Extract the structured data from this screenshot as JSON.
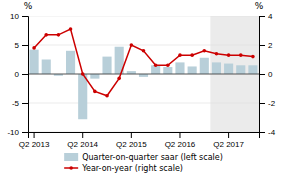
{
  "chart_data": {
    "type": "bar",
    "categories": [
      "Q2 2013",
      null,
      null,
      null,
      "Q2 2014",
      null,
      null,
      null,
      "Q2 2015",
      null,
      null,
      null,
      "Q2 2016",
      null,
      null,
      null,
      "Q2 2017",
      null,
      null
    ],
    "series": [
      {
        "name": "Quarter-on-quarter saar (left scale)",
        "type": "bar",
        "color": "#b8cfd9",
        "values": [
          4.2,
          2.5,
          -0.3,
          4.0,
          -7.8,
          -0.8,
          3.0,
          4.7,
          0.5,
          -0.5,
          1.5,
          1.2,
          2.0,
          1.3,
          2.8,
          2.0,
          1.8,
          1.5,
          1.5
        ]
      },
      {
        "name": "Year-on-year (right scale)",
        "type": "line",
        "axis": "y2",
        "color": "#cc0000",
        "marker": "circle",
        "values": [
          1.8,
          2.7,
          2.7,
          3.1,
          0.0,
          -1.2,
          -1.5,
          -0.3,
          2.0,
          1.6,
          0.6,
          0.6,
          1.3,
          1.3,
          1.6,
          1.4,
          1.3,
          1.3,
          1.2
        ]
      }
    ],
    "ylabel": "%",
    "y2label": "%",
    "ylim": [
      -10,
      10
    ],
    "yticks": [
      -10,
      -5,
      0,
      5,
      10
    ],
    "y2lim": [
      -4,
      4
    ],
    "y2ticks": [
      -4,
      -2,
      0,
      2,
      4
    ],
    "grid": true,
    "legend": "bottom",
    "shaded": {
      "from": 15,
      "color": "#ebebeb"
    }
  }
}
